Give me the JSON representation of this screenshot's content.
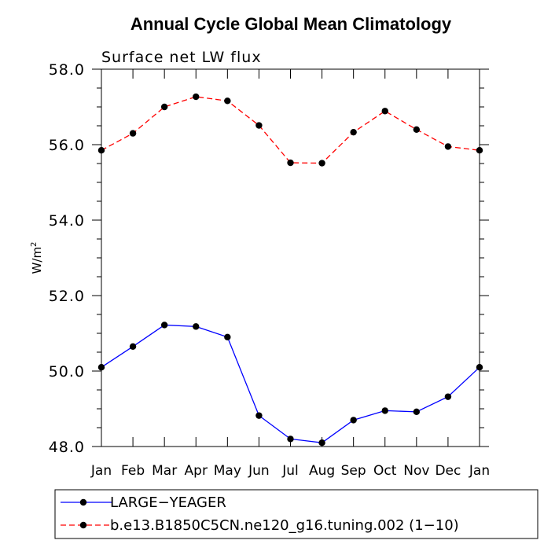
{
  "chart_data": {
    "type": "line",
    "title": "Annual Cycle Global Mean Climatology",
    "subtitle": "Surface net LW flux",
    "xlabel": "",
    "ylabel": "W/m",
    "ylabel_superscript": "2",
    "categories": [
      "Jan",
      "Feb",
      "Mar",
      "Apr",
      "May",
      "Jun",
      "Jul",
      "Aug",
      "Sep",
      "Oct",
      "Nov",
      "Dec",
      "Jan"
    ],
    "ylim": [
      48.0,
      58.0
    ],
    "yticks": [
      "48.0",
      "50.0",
      "52.0",
      "54.0",
      "56.0",
      "58.0"
    ],
    "series": [
      {
        "name": "LARGE−YEAGER",
        "color": "#0000ff",
        "dash": "solid",
        "values": [
          50.1,
          50.65,
          51.22,
          51.18,
          50.9,
          48.82,
          48.2,
          48.1,
          48.7,
          48.95,
          48.92,
          49.32,
          50.1
        ]
      },
      {
        "name": "b.e13.B1850C5CN.ne120_g16.tuning.002 (1−10)",
        "color": "#ff0000",
        "dash": "dashed",
        "values": [
          55.85,
          56.3,
          57.0,
          57.27,
          57.16,
          56.51,
          55.52,
          55.51,
          56.33,
          56.89,
          56.4,
          55.95,
          55.85
        ]
      }
    ]
  }
}
